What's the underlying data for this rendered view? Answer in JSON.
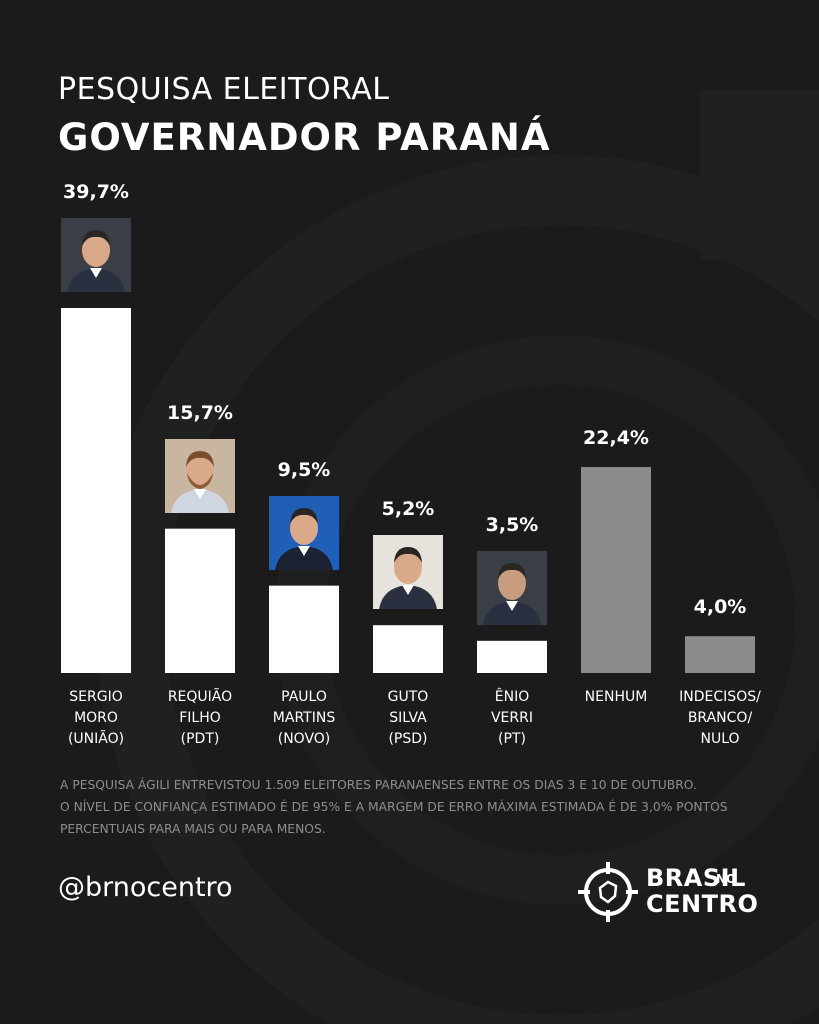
{
  "header": {
    "line1": "PESQUISA ELEITORAL",
    "line2": "GOVERNADOR PARANÁ"
  },
  "colors": {
    "background": "#1b1b1b",
    "bar_candidate": "#ffffff",
    "bar_other": "#8c8c8c",
    "footnote": "#8e8e8e"
  },
  "chart_data": {
    "type": "bar",
    "title": "GOVERNADOR PARANÁ",
    "categories": [
      [
        "SERGIO",
        "MORO",
        "(UNIÃO)"
      ],
      [
        "REQUIÃO",
        "FILHO",
        "(PDT)"
      ],
      [
        "PAULO",
        "MARTINS",
        "(NOVO)"
      ],
      [
        "GUTO",
        "SILVA",
        "(PSD)"
      ],
      [
        "ÊNIO",
        "VERRI",
        "(PT)"
      ],
      [
        "NENHUM"
      ],
      [
        "INDECISOS/",
        "BRANCO/",
        "NULO"
      ]
    ],
    "values": [
      39.7,
      15.7,
      9.5,
      5.2,
      3.5,
      22.4,
      4.0
    ],
    "value_labels": [
      "39,7%",
      "15,7%",
      "9,5%",
      "5,2%",
      "3,5%",
      "22,4%",
      "4,0%"
    ],
    "has_photo": [
      true,
      true,
      true,
      true,
      true,
      false,
      false
    ],
    "bar_kind": [
      "candidate",
      "candidate",
      "candidate",
      "candidate",
      "candidate",
      "other",
      "other"
    ],
    "ylim": [
      0,
      39.7
    ],
    "grid": false,
    "legend": "none"
  },
  "footnote": {
    "lines": [
      "A PESQUISA ÁGILI ENTREVISTOU 1.509 ELEITORES PARANAENSES ENTRE OS DIAS 3 E 10 DE OUTUBRO.",
      "O NÍVEL DE CONFIANÇA ESTIMADO É DE 95% E A MARGEM DE ERRO MÁXIMA ESTIMADA É DE 3,0% PONTOS",
      "PERCENTUAIS PARA MAIS OU PARA MENOS."
    ]
  },
  "social": {
    "handle": "@brnocentro"
  },
  "logo": {
    "word1": "BRASIL",
    "word2": "NO",
    "word3": "CENTRO",
    "icon": "target-map-icon"
  }
}
